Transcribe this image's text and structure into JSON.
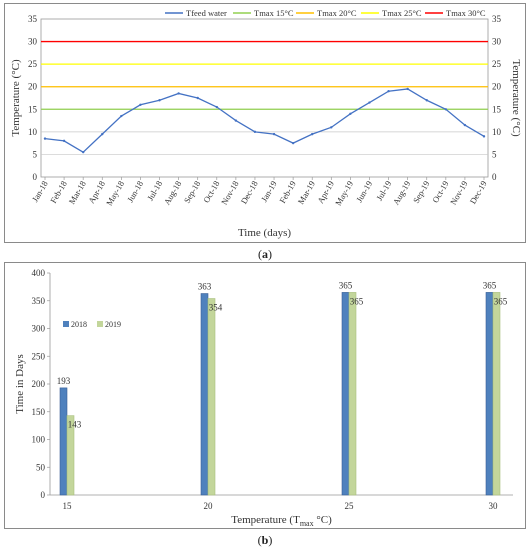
{
  "captions": {
    "a": "a",
    "b": "b"
  },
  "chart_data": [
    {
      "type": "line",
      "xlabel": "Time (days)",
      "ylabel": "Temperature (°C)",
      "ylim": [
        0,
        35
      ],
      "yticks": [
        0,
        5,
        10,
        15,
        20,
        25,
        30,
        35
      ],
      "xticks": [
        "Jan-18",
        "Feb-18",
        "Mar-18",
        "Apr-18",
        "May-18",
        "Jun-18",
        "Jul-18",
        "Aug-18",
        "Sep-18",
        "Oct-18",
        "Nov-18",
        "Dec-18",
        "Jan-19",
        "Feb-19",
        "Mar-19",
        "Apr-19",
        "May-19",
        "Jun-19",
        "Jul-19",
        "Aug-19",
        "Sep-19",
        "Oct-19",
        "Nov-19",
        "Dec-19"
      ],
      "grid": true,
      "legend_position": "top-right",
      "series": [
        {
          "name": "Tfeed water",
          "color": "#4472c4",
          "x": [
            "Jan-18",
            "Feb-18",
            "Mar-18",
            "Apr-18",
            "May-18",
            "Jun-18",
            "Jul-18",
            "Aug-18",
            "Sep-18",
            "Oct-18",
            "Nov-18",
            "Dec-18",
            "Jan-19",
            "Feb-19",
            "Mar-19",
            "Apr-19",
            "May-19",
            "Jun-19",
            "Jul-19",
            "Aug-19",
            "Sep-19",
            "Oct-19",
            "Nov-19",
            "Dec-19"
          ],
          "values": [
            8.5,
            8.0,
            5.5,
            9.5,
            13.5,
            16.0,
            17.0,
            18.5,
            17.5,
            15.5,
            12.5,
            10.0,
            9.5,
            7.5,
            9.5,
            11.0,
            14.0,
            16.5,
            19.0,
            19.5,
            17.0,
            15.0,
            11.5,
            9.0
          ]
        },
        {
          "name": "Tmax 15°C",
          "color": "#92d050",
          "constant": 15
        },
        {
          "name": "Tmax 20°C",
          "color": "#ffc000",
          "constant": 20
        },
        {
          "name": "Tmax 25°C",
          "color": "#ffff00",
          "constant": 25
        },
        {
          "name": "Tmax 30°C",
          "color": "#ff0000",
          "constant": 30
        }
      ]
    },
    {
      "type": "bar",
      "xlabel_main": "Temperature (T",
      "xlabel_sub": "max",
      "xlabel_tail": " °C)",
      "ylabel": "Time in Days",
      "ylim": [
        0,
        400
      ],
      "yticks": [
        0,
        50,
        100,
        150,
        200,
        250,
        300,
        350,
        400
      ],
      "categories": [
        "15",
        "20",
        "25",
        "30"
      ],
      "legend_position": "top-left",
      "series": [
        {
          "name": "2018",
          "color": "#4f81bd",
          "values": [
            193,
            363,
            365,
            365
          ]
        },
        {
          "name": "2019",
          "color": "#c3d69b",
          "values": [
            143,
            354,
            365,
            365
          ]
        }
      ]
    }
  ]
}
